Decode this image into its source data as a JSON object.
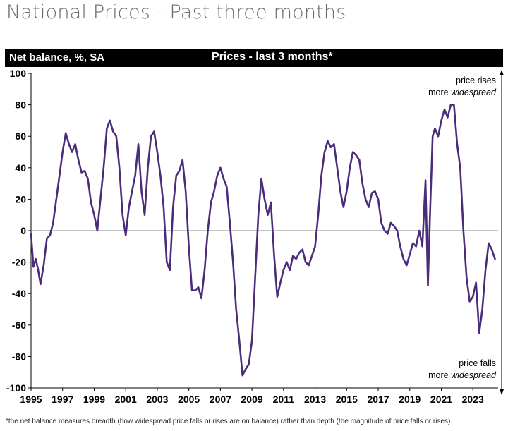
{
  "page": {
    "title": "National Prices - Past three months",
    "footnote": "*the net balance measures breadth (how widespread price falls or rises are on balance)  rather than depth (the magnitude of price falls or rises)."
  },
  "header": {
    "left_label": "Net balance, %, SA",
    "chart_title": "Prices - last 3 months*"
  },
  "annotations": {
    "top_line1": "price rises",
    "top_line2_prefix": "more ",
    "top_line2_emph": "widespread",
    "bottom_line1": "price falls",
    "bottom_line2_prefix": "more ",
    "bottom_line2_emph": "widespread"
  },
  "colors": {
    "line": "#4a2c7a",
    "zero": "#8a8a8a",
    "header_bg": "#000000"
  },
  "chart_data": {
    "type": "line",
    "title": "Prices - last 3 months*",
    "ylabel": "Net balance, %, SA",
    "xlabel": "",
    "xlim": [
      1995.0,
      2024.6
    ],
    "ylim": [
      -100,
      100
    ],
    "xticks": [
      1995,
      1997,
      1999,
      2001,
      2003,
      2005,
      2007,
      2009,
      2011,
      2013,
      2015,
      2017,
      2019,
      2021,
      2023
    ],
    "yticks": [
      100,
      80,
      60,
      40,
      20,
      0,
      -20,
      -40,
      -60,
      -80,
      -100
    ],
    "grid": false,
    "series": [
      {
        "name": "Prices - last 3 months",
        "x": [
          1995.0,
          1995.15,
          1995.3,
          1995.45,
          1995.6,
          1995.8,
          1996.0,
          1996.2,
          1996.4,
          1996.6,
          1996.8,
          1997.0,
          1997.2,
          1997.4,
          1997.6,
          1997.8,
          1998.0,
          1998.2,
          1998.4,
          1998.6,
          1998.8,
          1999.0,
          1999.2,
          1999.4,
          1999.6,
          1999.8,
          2000.0,
          2000.2,
          2000.4,
          2000.6,
          2000.8,
          2001.0,
          2001.2,
          2001.4,
          2001.6,
          2001.8,
          2002.0,
          2002.2,
          2002.4,
          2002.6,
          2002.8,
          2003.0,
          2003.2,
          2003.4,
          2003.6,
          2003.8,
          2004.0,
          2004.2,
          2004.4,
          2004.6,
          2004.8,
          2005.0,
          2005.2,
          2005.4,
          2005.6,
          2005.8,
          2006.0,
          2006.2,
          2006.4,
          2006.6,
          2006.8,
          2007.0,
          2007.2,
          2007.4,
          2007.6,
          2007.8,
          2008.0,
          2008.2,
          2008.4,
          2008.6,
          2008.8,
          2009.0,
          2009.2,
          2009.4,
          2009.6,
          2009.8,
          2010.0,
          2010.2,
          2010.4,
          2010.6,
          2010.8,
          2011.0,
          2011.2,
          2011.4,
          2011.6,
          2011.8,
          2012.0,
          2012.2,
          2012.4,
          2012.6,
          2012.8,
          2013.0,
          2013.2,
          2013.4,
          2013.6,
          2013.8,
          2014.0,
          2014.2,
          2014.4,
          2014.6,
          2014.8,
          2015.0,
          2015.2,
          2015.4,
          2015.6,
          2015.8,
          2016.0,
          2016.2,
          2016.4,
          2016.6,
          2016.8,
          2017.0,
          2017.2,
          2017.4,
          2017.6,
          2017.8,
          2018.0,
          2018.2,
          2018.4,
          2018.6,
          2018.8,
          2019.0,
          2019.2,
          2019.4,
          2019.6,
          2019.8,
          2020.0,
          2020.15,
          2020.3,
          2020.45,
          2020.6,
          2020.8,
          2021.0,
          2021.2,
          2021.4,
          2021.6,
          2021.8,
          2022.0,
          2022.2,
          2022.4,
          2022.6,
          2022.8,
          2023.0,
          2023.2,
          2023.4,
          2023.6,
          2023.8,
          2024.0,
          2024.2,
          2024.4
        ],
        "values": [
          -2,
          -23,
          -18,
          -25,
          -34,
          -22,
          -5,
          -3,
          5,
          20,
          35,
          50,
          62,
          55,
          50,
          55,
          45,
          37,
          38,
          33,
          18,
          10,
          0,
          20,
          40,
          65,
          70,
          63,
          60,
          40,
          10,
          -3,
          15,
          25,
          35,
          55,
          25,
          10,
          40,
          60,
          63,
          50,
          35,
          15,
          -20,
          -25,
          15,
          35,
          38,
          45,
          25,
          -10,
          -38,
          -38,
          -36,
          -43,
          -25,
          0,
          18,
          25,
          35,
          40,
          33,
          28,
          5,
          -20,
          -50,
          -70,
          -92,
          -88,
          -85,
          -70,
          -30,
          10,
          33,
          20,
          10,
          18,
          -15,
          -42,
          -33,
          -25,
          -20,
          -25,
          -16,
          -18,
          -14,
          -12,
          -20,
          -22,
          -16,
          -10,
          10,
          35,
          50,
          57,
          53,
          55,
          40,
          25,
          15,
          25,
          40,
          50,
          48,
          45,
          30,
          20,
          15,
          24,
          25,
          20,
          5,
          0,
          -2,
          5,
          3,
          0,
          -10,
          -18,
          -22,
          -15,
          -8,
          -10,
          0,
          -10,
          32,
          -35,
          15,
          60,
          65,
          60,
          70,
          77,
          72,
          80,
          80,
          55,
          40,
          0,
          -30,
          -45,
          -42,
          -33,
          -65,
          -50,
          -25,
          -8,
          -12,
          -18
        ]
      }
    ]
  }
}
